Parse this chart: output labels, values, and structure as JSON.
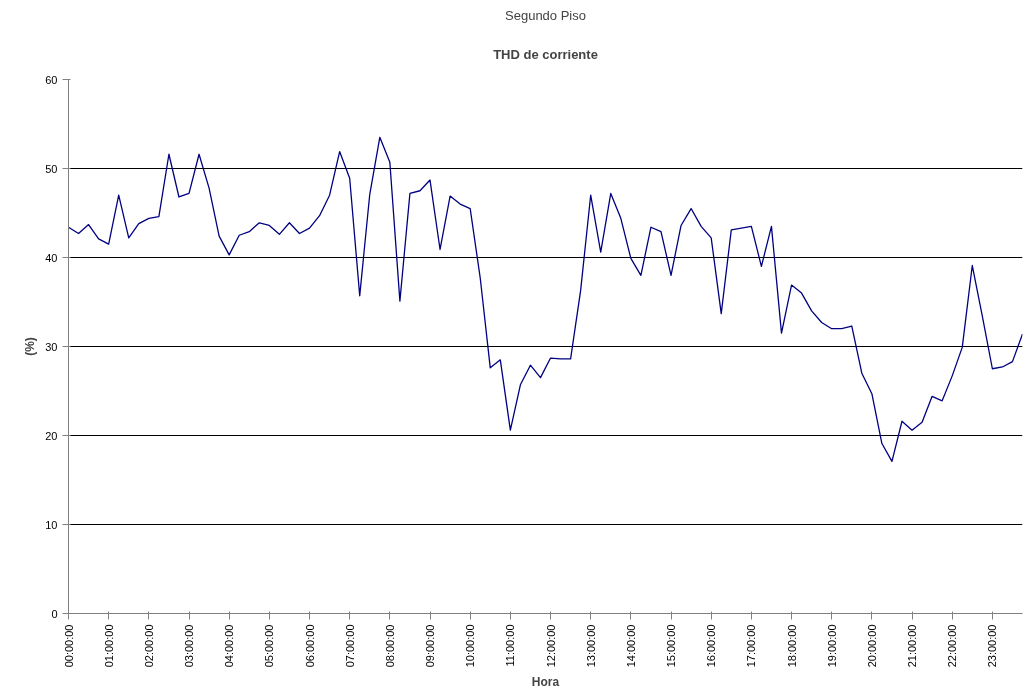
{
  "chart_data": {
    "type": "line",
    "title": "Segundo Piso",
    "subtitle": "THD de corriente",
    "xlabel": "Hora",
    "ylabel": "(%)",
    "x": [
      0,
      0.25,
      0.5,
      0.75,
      1,
      1.25,
      1.5,
      1.75,
      2,
      2.25,
      2.5,
      2.75,
      3,
      3.25,
      3.5,
      3.75,
      4,
      4.25,
      4.5,
      4.75,
      5,
      5.25,
      5.5,
      5.75,
      6,
      6.25,
      6.5,
      6.75,
      7,
      7.25,
      7.5,
      7.75,
      8,
      8.25,
      8.5,
      8.75,
      9,
      9.25,
      9.5,
      9.75,
      10,
      10.25,
      10.5,
      10.75,
      11,
      11.25,
      11.5,
      11.75,
      12,
      12.25,
      12.5,
      12.75,
      13,
      13.25,
      13.5,
      13.75,
      14,
      14.25,
      14.5,
      14.75,
      15,
      15.25,
      15.5,
      15.75,
      16,
      16.25,
      16.5,
      16.75,
      17,
      17.25,
      17.5,
      17.75,
      18,
      18.25,
      18.5,
      18.75,
      19,
      19.25,
      19.5,
      19.75,
      20,
      20.25,
      20.5,
      20.75,
      21,
      21.25,
      21.5,
      21.75,
      22,
      22.25,
      22.5,
      22.75,
      23,
      23.25,
      23.5,
      23.75
    ],
    "series": [
      {
        "color": "#000080",
        "values": [
          43.4,
          42.7,
          43.7,
          42.1,
          41.5,
          47.0,
          42.2,
          43.8,
          44.4,
          44.6,
          51.6,
          46.8,
          47.2,
          51.6,
          47.8,
          42.4,
          40.3,
          42.5,
          42.9,
          43.9,
          43.6,
          42.6,
          43.9,
          42.7,
          43.3,
          44.7,
          47.0,
          51.9,
          48.9,
          35.7,
          47.1,
          53.5,
          50.7,
          35.1,
          47.2,
          47.5,
          48.7,
          40.9,
          46.9,
          46.0,
          45.5,
          37.7,
          27.6,
          28.5,
          20.6,
          25.7,
          27.9,
          26.5,
          28.7,
          28.6,
          28.6,
          36.3,
          47.0,
          40.6,
          47.2,
          44.4,
          39.9,
          38.0,
          43.4,
          42.9,
          38.0,
          43.6,
          45.5,
          43.5,
          42.2,
          33.7,
          43.1,
          43.3,
          43.5,
          39.0,
          43.5,
          31.5,
          36.9,
          36.0,
          34.0,
          32.7,
          32.0,
          32.0,
          32.3,
          27.0,
          24.7,
          19.1,
          17.1,
          21.6,
          20.6,
          21.5,
          24.4,
          23.9,
          26.7,
          29.9,
          39.1,
          33.4,
          27.5,
          27.7,
          28.3,
          31.4
        ]
      }
    ],
    "xlim": [
      0,
      23.75
    ],
    "xticks": [
      {
        "value": 0,
        "label": "00:00:00"
      },
      {
        "value": 1,
        "label": "01:00:00"
      },
      {
        "value": 2,
        "label": "02:00:00"
      },
      {
        "value": 3,
        "label": "03:00:00"
      },
      {
        "value": 4,
        "label": "04:00:00"
      },
      {
        "value": 5,
        "label": "05:00:00"
      },
      {
        "value": 6,
        "label": "06:00:00"
      },
      {
        "value": 7,
        "label": "07:00:00"
      },
      {
        "value": 8,
        "label": "08:00:00"
      },
      {
        "value": 9,
        "label": "09:00:00"
      },
      {
        "value": 10,
        "label": "10:00:00"
      },
      {
        "value": 11,
        "label": "11:00:00"
      },
      {
        "value": 12,
        "label": "12:00:00"
      },
      {
        "value": 13,
        "label": "13:00:00"
      },
      {
        "value": 14,
        "label": "14:00:00"
      },
      {
        "value": 15,
        "label": "15:00:00"
      },
      {
        "value": 16,
        "label": "16:00:00"
      },
      {
        "value": 17,
        "label": "17:00:00"
      },
      {
        "value": 18,
        "label": "18:00:00"
      },
      {
        "value": 19,
        "label": "19:00:00"
      },
      {
        "value": 20,
        "label": "20:00:00"
      },
      {
        "value": 21,
        "label": "21:00:00"
      },
      {
        "value": 22,
        "label": "22:00:00"
      },
      {
        "value": 23,
        "label": "23:00:00"
      }
    ],
    "ylim": [
      0,
      60
    ],
    "yticks": [
      0,
      10,
      20,
      30,
      40,
      50,
      60
    ],
    "grid": "y",
    "marker": "none",
    "line_style": "solid"
  }
}
